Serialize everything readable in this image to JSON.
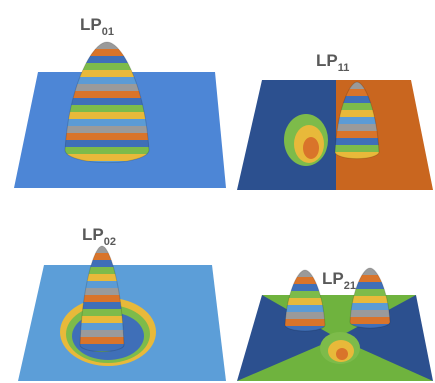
{
  "panels": [
    {
      "label": {
        "base": "LP",
        "sub": "01"
      }
    },
    {
      "label": {
        "base": "LP",
        "sub": "11"
      }
    },
    {
      "label": {
        "base": "LP",
        "sub": "02"
      }
    },
    {
      "label": {
        "base": "LP",
        "sub": "21"
      }
    }
  ]
}
